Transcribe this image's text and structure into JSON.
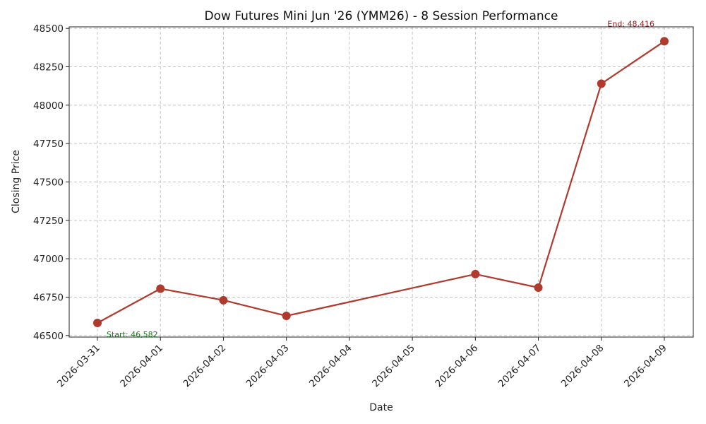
{
  "chart_data": {
    "type": "line",
    "title": "Dow Futures Mini Jun '26 (YMM26) - 8 Session Performance",
    "xlabel": "Date",
    "ylabel": "Closing Price",
    "x_tick_labels": [
      "2026-03-31",
      "2026-04-01",
      "2026-04-02",
      "2026-04-03",
      "2026-04-04",
      "2026-04-05",
      "2026-04-06",
      "2026-04-07",
      "2026-04-08",
      "2026-04-09"
    ],
    "y_tick_labels": [
      "46500",
      "46750",
      "47000",
      "47250",
      "47500",
      "47750",
      "48000",
      "48250",
      "48500"
    ],
    "xlim": [
      "2026-03-31",
      "2026-04-09"
    ],
    "ylim": [
      46490,
      48510
    ],
    "grid": true,
    "series": [
      {
        "color": "#b03a2e",
        "x": [
          "2026-03-31",
          "2026-04-01",
          "2026-04-02",
          "2026-04-03",
          "2026-04-06",
          "2026-04-07",
          "2026-04-08",
          "2026-04-09"
        ],
        "y": [
          46582,
          46805,
          46730,
          46628,
          46900,
          46812,
          48140,
          48416
        ]
      }
    ],
    "annotations": [
      {
        "text": "Start: 46,582",
        "x": "2026-03-31",
        "y": 46582,
        "color": "#1a7a1a"
      },
      {
        "text": "End: 48,416",
        "x": "2026-04-09",
        "y": 48416,
        "color": "#8b1a1a"
      }
    ]
  }
}
